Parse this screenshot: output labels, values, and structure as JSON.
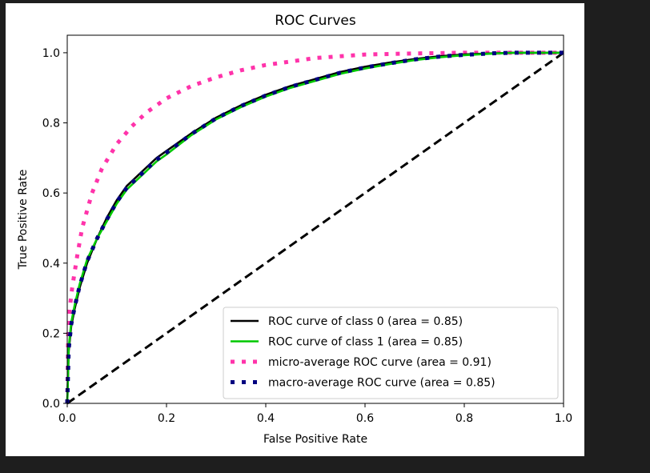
{
  "chart_data": {
    "type": "line",
    "title": "ROC Curves",
    "xlabel": "False Positive Rate",
    "ylabel": "True Positive Rate",
    "xlim": [
      0.0,
      1.0
    ],
    "ylim": [
      0.0,
      1.05
    ],
    "x_ticks": [
      "0.0",
      "0.2",
      "0.4",
      "0.6",
      "0.8",
      "1.0"
    ],
    "y_ticks": [
      "0.0",
      "0.2",
      "0.4",
      "0.6",
      "0.8",
      "1.0"
    ],
    "grid": false,
    "legend_position": "lower-right",
    "series": [
      {
        "name": "ROC curve of class 0 (area = 0.85)",
        "color": "#000000",
        "style": "solid",
        "x": [
          0.0,
          0.003,
          0.008,
          0.015,
          0.025,
          0.04,
          0.06,
          0.08,
          0.1,
          0.12,
          0.15,
          0.18,
          0.2,
          0.25,
          0.3,
          0.35,
          0.4,
          0.45,
          0.5,
          0.55,
          0.6,
          0.65,
          0.7,
          0.75,
          0.8,
          0.85,
          0.9,
          0.95,
          1.0
        ],
        "y": [
          0.0,
          0.15,
          0.22,
          0.27,
          0.33,
          0.4,
          0.47,
          0.53,
          0.58,
          0.62,
          0.66,
          0.7,
          0.72,
          0.77,
          0.815,
          0.85,
          0.88,
          0.905,
          0.925,
          0.945,
          0.96,
          0.972,
          0.982,
          0.99,
          0.995,
          0.998,
          1.0,
          1.0,
          1.0
        ]
      },
      {
        "name": "ROC curve of class 1 (area = 0.85)",
        "color": "#00c800",
        "style": "solid",
        "x": [
          0.0,
          0.003,
          0.008,
          0.015,
          0.025,
          0.04,
          0.06,
          0.08,
          0.1,
          0.12,
          0.15,
          0.18,
          0.2,
          0.25,
          0.3,
          0.35,
          0.4,
          0.45,
          0.5,
          0.55,
          0.6,
          0.65,
          0.7,
          0.75,
          0.8,
          0.85,
          0.9,
          0.95,
          1.0
        ],
        "y": [
          0.0,
          0.16,
          0.23,
          0.28,
          0.34,
          0.41,
          0.47,
          0.52,
          0.57,
          0.61,
          0.65,
          0.69,
          0.71,
          0.765,
          0.81,
          0.845,
          0.875,
          0.9,
          0.92,
          0.94,
          0.955,
          0.968,
          0.979,
          0.987,
          0.993,
          0.997,
          1.0,
          1.0,
          1.0
        ]
      },
      {
        "name": "micro-average ROC curve (area = 0.91)",
        "color": "#ff33aa",
        "style": "dotted",
        "x": [
          0.0,
          0.002,
          0.005,
          0.01,
          0.02,
          0.03,
          0.05,
          0.07,
          0.1,
          0.13,
          0.16,
          0.2,
          0.25,
          0.3,
          0.35,
          0.4,
          0.45,
          0.5,
          0.55,
          0.6,
          0.7,
          0.8,
          0.9,
          1.0
        ],
        "y": [
          0.0,
          0.2,
          0.27,
          0.33,
          0.42,
          0.5,
          0.6,
          0.67,
          0.74,
          0.79,
          0.83,
          0.87,
          0.905,
          0.93,
          0.95,
          0.965,
          0.975,
          0.985,
          0.99,
          0.995,
          0.998,
          1.0,
          1.0,
          1.0
        ]
      },
      {
        "name": "macro-average ROC curve (area = 0.85)",
        "color": "#000080",
        "style": "dotted",
        "x": [
          0.0,
          0.003,
          0.008,
          0.015,
          0.025,
          0.04,
          0.06,
          0.08,
          0.1,
          0.12,
          0.15,
          0.18,
          0.2,
          0.25,
          0.3,
          0.35,
          0.4,
          0.45,
          0.5,
          0.55,
          0.6,
          0.65,
          0.7,
          0.75,
          0.8,
          0.85,
          0.9,
          0.95,
          1.0
        ],
        "y": [
          0.0,
          0.155,
          0.225,
          0.275,
          0.335,
          0.405,
          0.47,
          0.525,
          0.575,
          0.615,
          0.655,
          0.695,
          0.715,
          0.768,
          0.813,
          0.848,
          0.878,
          0.903,
          0.923,
          0.943,
          0.958,
          0.97,
          0.981,
          0.989,
          0.994,
          0.998,
          1.0,
          1.0,
          1.0
        ]
      },
      {
        "color": "#000000",
        "style": "dashed",
        "x": [
          0.0,
          1.0
        ],
        "y": [
          0.0,
          1.0
        ]
      }
    ]
  }
}
